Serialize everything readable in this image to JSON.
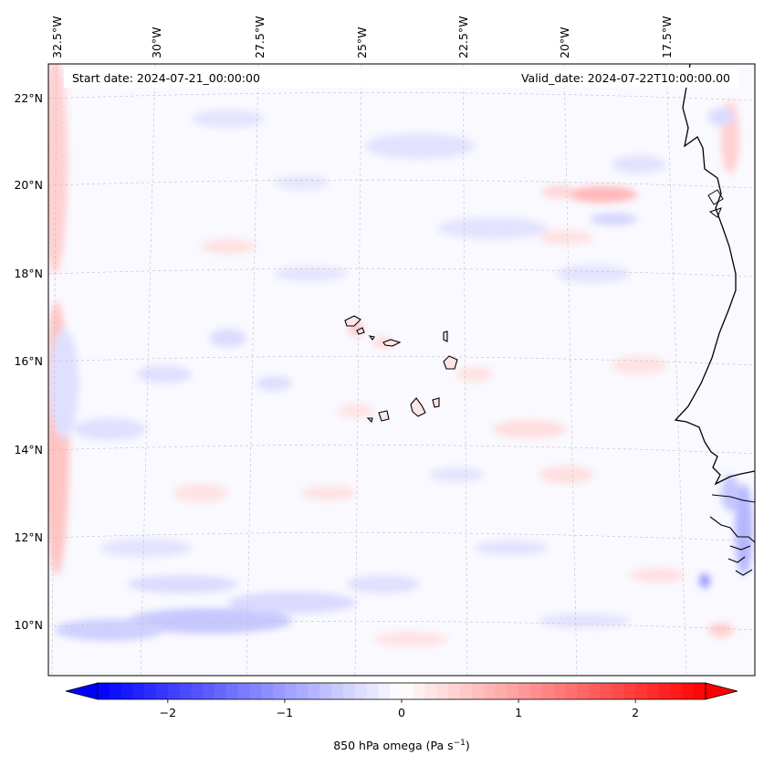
{
  "map": {
    "start_date": "Start date: 2024-07-21_00:00:00",
    "valid_date": "Valid_date: 2024-07-22T10:00:00.00",
    "lon_labels": [
      "32.5°W",
      "30°W",
      "27.5°W",
      "25°W",
      "22.5°W",
      "20°W",
      "17.5°W"
    ],
    "lat_labels": [
      "22°N",
      "20°N",
      "18°N",
      "16°N",
      "14°N",
      "12°N",
      "10°N"
    ],
    "grid": true,
    "projection": "Lambert conformal",
    "field": "850 hPa omega",
    "coastline_color": "#000000"
  },
  "colorbar": {
    "label": "850 hPa omega (Pa s",
    "label_sup": "−1",
    "label_end": ")",
    "ticks": [
      "−2",
      "−1",
      "0",
      "1",
      "2"
    ],
    "tick_values": [
      -2,
      -1,
      0,
      1,
      2
    ],
    "min": -2.6,
    "max": 2.6,
    "cmap": "bwr",
    "extend": "both",
    "low_color": "#0000ff",
    "mid_color": "#ffffff",
    "high_color": "#ff0000"
  }
}
